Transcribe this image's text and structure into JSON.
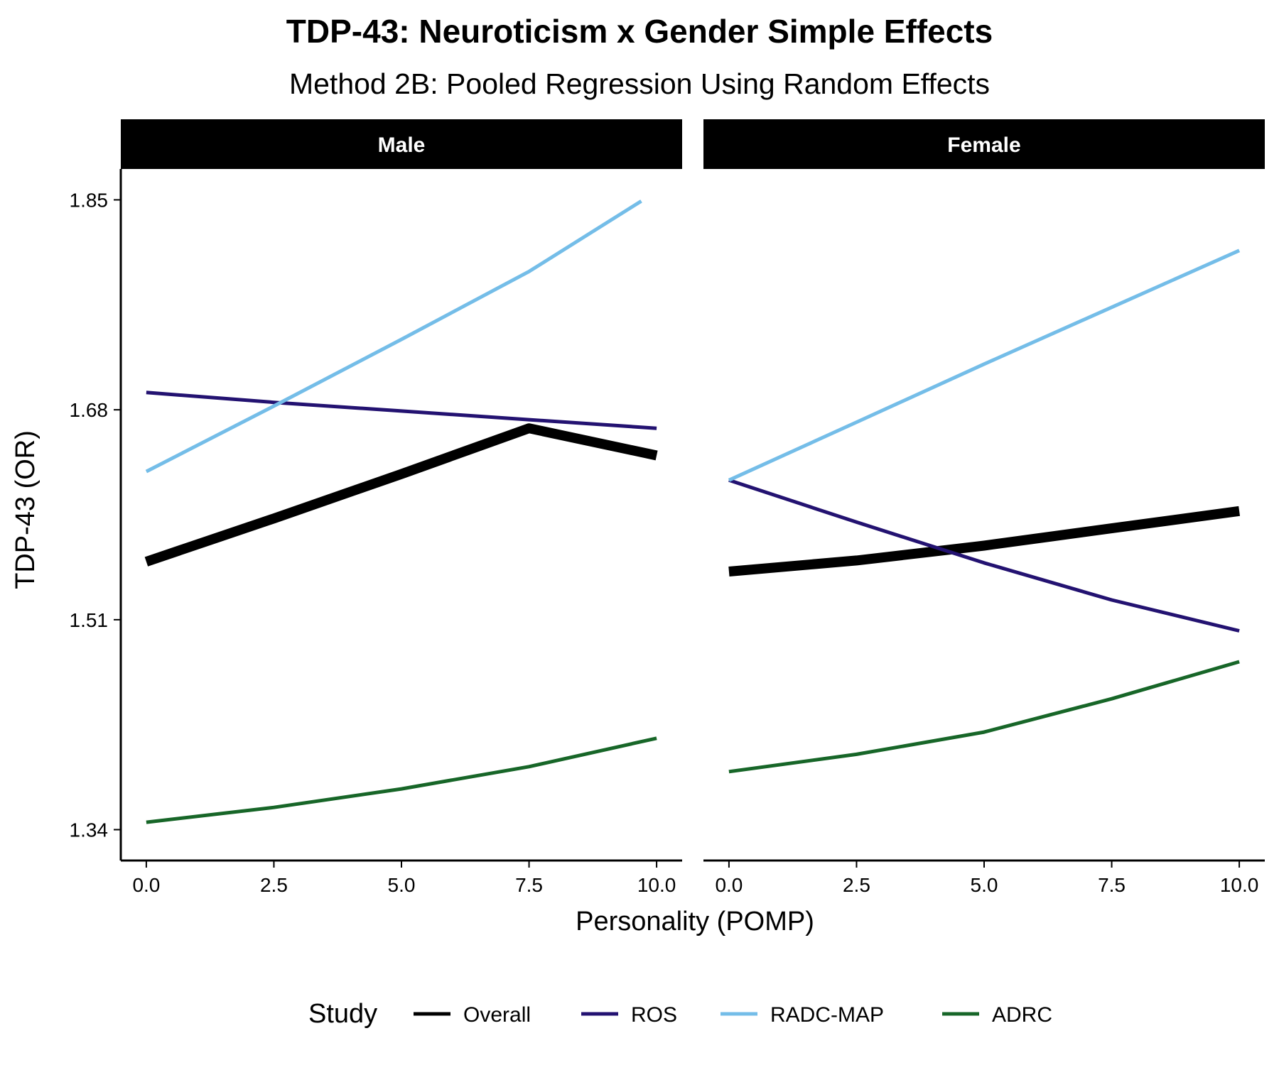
{
  "chart_data": {
    "type": "line",
    "title": "TDP-43: Neuroticism x Gender Simple Effects",
    "subtitle": "Method 2B: Pooled Regression Using Random Effects",
    "xlabel": "Personality (POMP)",
    "ylabel": "TDP-43 (OR)",
    "xlim": [
      -0.5,
      10.5
    ],
    "ylim": [
      1.315,
      1.875
    ],
    "x_ticks": [
      "0.0",
      "2.5",
      "5.0",
      "7.5",
      "10.0"
    ],
    "y_ticks": [
      "1.34",
      "1.51",
      "1.68",
      "1.85"
    ],
    "grid": false,
    "legend": {
      "title": "Study",
      "position": "bottom",
      "entries": [
        "Overall",
        "ROS",
        "RADC-MAP",
        "ADRC"
      ]
    },
    "colors": {
      "Overall": "#000000",
      "ROS": "#231271",
      "RADC-MAP": "#74bde8",
      "ADRC": "#176628",
      "strip_background": "#000000",
      "strip_text": "#ffffff"
    },
    "panels": [
      {
        "label": "Male",
        "series": [
          {
            "name": "Overall",
            "x": [
              0,
              2.5,
              5,
              7.5,
              10
            ],
            "y": [
              1.557,
              1.592,
              1.628,
              1.665,
              1.643
            ]
          },
          {
            "name": "ROS",
            "x": [
              0,
              2.5,
              5,
              7.5,
              10
            ],
            "y": [
              1.694,
              1.686,
              1.679,
              1.672,
              1.665
            ]
          },
          {
            "name": "RADC-MAP",
            "x": [
              0,
              2.5,
              5,
              7.5,
              9.7
            ],
            "y": [
              1.63,
              1.683,
              1.737,
              1.792,
              1.849
            ]
          },
          {
            "name": "ADRC",
            "x": [
              0,
              2.5,
              5,
              7.5,
              10
            ],
            "y": [
              1.346,
              1.358,
              1.373,
              1.391,
              1.414
            ]
          }
        ]
      },
      {
        "label": "Female",
        "series": [
          {
            "name": "Overall",
            "x": [
              0,
              2.5,
              5,
              7.5,
              10
            ],
            "y": [
              1.549,
              1.558,
              1.57,
              1.584,
              1.598
            ]
          },
          {
            "name": "ROS",
            "x": [
              0,
              2.5,
              5,
              7.5,
              10
            ],
            "y": [
              1.623,
              1.589,
              1.556,
              1.526,
              1.501
            ]
          },
          {
            "name": "RADC-MAP",
            "x": [
              0,
              2.5,
              5,
              7.5,
              10
            ],
            "y": [
              1.623,
              1.67,
              1.717,
              1.763,
              1.809
            ]
          },
          {
            "name": "ADRC",
            "x": [
              0,
              2.5,
              5,
              7.5,
              10
            ],
            "y": [
              1.387,
              1.401,
              1.419,
              1.446,
              1.476
            ]
          }
        ]
      }
    ]
  }
}
